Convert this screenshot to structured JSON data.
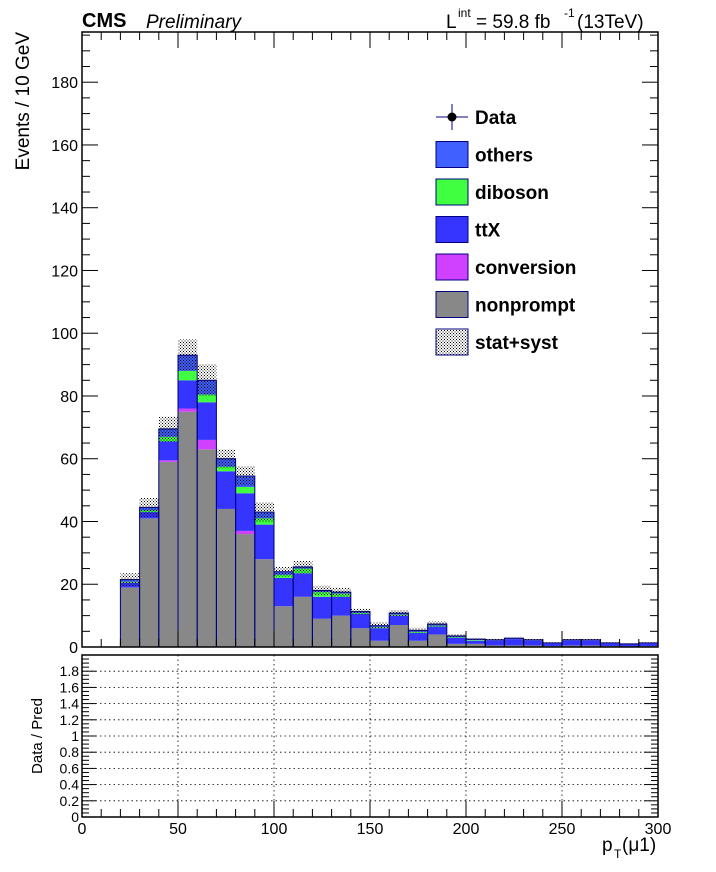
{
  "header": {
    "experiment": "CMS",
    "status": "Preliminary",
    "lumi_base": "L",
    "lumi_sup": "int",
    "lumi_value": " = 59.8 fb",
    "lumi_exp": "-1",
    "lumi_energy": " (13TeV)"
  },
  "chart_data": {
    "type": "bar",
    "stacked": true,
    "bin_width": 10,
    "x": [
      25,
      35,
      45,
      55,
      65,
      75,
      85,
      95,
      105,
      115,
      125,
      135,
      145,
      155,
      165,
      175,
      185,
      195,
      205,
      215,
      225,
      235,
      245,
      255,
      265,
      275,
      285,
      295
    ],
    "series": [
      {
        "name": "nonprompt",
        "color": "#888888",
        "values": [
          19,
          41,
          59,
          75,
          63,
          44,
          36,
          28,
          13,
          16,
          9,
          10,
          6,
          2,
          7,
          2,
          4,
          1,
          1,
          0.5,
          0.5,
          0.5,
          0.3,
          0.5,
          0.5,
          0.3,
          0.2,
          0.3
        ]
      },
      {
        "name": "conversion",
        "color": "#d040ff",
        "values": [
          0,
          0,
          0.5,
          1,
          3,
          0,
          1,
          0,
          0,
          0,
          0,
          0,
          0,
          0,
          0,
          0,
          0,
          0,
          0,
          0,
          0,
          0,
          0,
          0,
          0,
          0,
          0,
          0
        ]
      },
      {
        "name": "ttX",
        "color": "#3535ff",
        "values": [
          1.5,
          2,
          6,
          9,
          12,
          12,
          12,
          11,
          9,
          7.5,
          7,
          6,
          4.5,
          4,
          3,
          2.5,
          2.5,
          2,
          1,
          1.5,
          2,
          1.5,
          0.8,
          1.5,
          1.5,
          0.8,
          0.6,
          0.8
        ]
      },
      {
        "name": "diboson",
        "color": "#40ff40",
        "values": [
          0.3,
          0.5,
          1.5,
          3,
          2.5,
          1.5,
          2,
          2,
          1,
          1.5,
          1.5,
          1,
          0.3,
          0.3,
          0.3,
          0.3,
          0.3,
          0.2,
          0.2,
          0,
          0,
          0,
          0,
          0,
          0,
          0,
          0,
          0
        ]
      },
      {
        "name": "others",
        "color": "#4060ff",
        "values": [
          0.7,
          1,
          2.5,
          5,
          4.5,
          2.5,
          3.5,
          2,
          1,
          0.5,
          0.5,
          0.5,
          0.5,
          0.5,
          0.5,
          0.5,
          0.5,
          0.3,
          0.3,
          0.3,
          0.3,
          0.3,
          0.2,
          0.3,
          0.3,
          0.2,
          0.2,
          0.2
        ]
      }
    ],
    "uncertainty": {
      "name": "stat+syst",
      "values": [
        2,
        3,
        4,
        5,
        5,
        3,
        3,
        3,
        1.5,
        2,
        1.5,
        1.5,
        1,
        1,
        1,
        0.8,
        0.8,
        0.5,
        0.3,
        0.3,
        0.3,
        0.3,
        0.2,
        0.3,
        0.3,
        0.2,
        0.1,
        0.2
      ]
    },
    "data_series": {
      "name": "Data",
      "values": []
    },
    "legend": {
      "position": "top-right",
      "entries": [
        {
          "label": "Data",
          "kind": "marker",
          "color": "#000000"
        },
        {
          "label": "others",
          "kind": "box",
          "color": "#4060ff"
        },
        {
          "label": "diboson",
          "kind": "box",
          "color": "#40ff40"
        },
        {
          "label": "ttX",
          "kind": "box",
          "color": "#3535ff"
        },
        {
          "label": "conversion",
          "kind": "box",
          "color": "#d040ff"
        },
        {
          "label": "nonprompt",
          "kind": "box",
          "color": "#888888"
        },
        {
          "label": "stat+syst",
          "kind": "hatch",
          "color": "#000000"
        }
      ]
    },
    "main_panel": {
      "ylabel": "Events / 10 GeV",
      "xlim": [
        0,
        300
      ],
      "ylim": [
        0,
        196
      ],
      "ytick_major": [
        0,
        20,
        40,
        60,
        80,
        100,
        120,
        140,
        160,
        180
      ],
      "ytick_minor_step": 5
    },
    "ratio_panel": {
      "ylabel": "Data / Pred",
      "ylim": [
        0,
        2
      ],
      "yticks": [
        0,
        0.2,
        0.4,
        0.6,
        0.8,
        1,
        1.2,
        1.4,
        1.6,
        1.8
      ],
      "ytick_labels": [
        "0",
        "0.2",
        "0.4",
        "0.6",
        "0.8",
        "1",
        "1.2",
        "1.4",
        "1.6",
        "1.8"
      ],
      "xticks": [
        0,
        50,
        100,
        150,
        200,
        250,
        300
      ],
      "xtick_labels": [
        "0",
        "50",
        "100",
        "150",
        "200",
        "250",
        "300"
      ],
      "grid": true
    },
    "xlabel_main": "p",
    "xlabel_sub": "T",
    "xlabel_rest": "(μ1)"
  }
}
